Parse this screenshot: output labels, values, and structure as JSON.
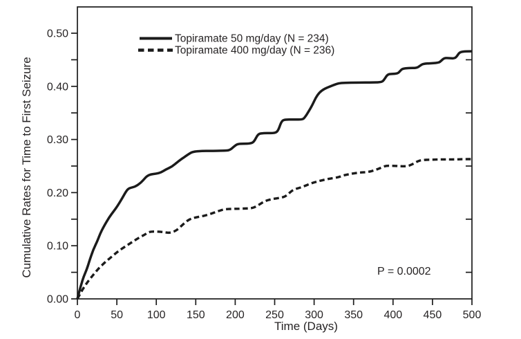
{
  "chart_data": {
    "type": "line",
    "title": "",
    "xlabel": "Time (Days)",
    "ylabel": "Cumulative Rates for Time to First Seizure",
    "xlim": [
      0,
      500
    ],
    "ylim": [
      0,
      0.55
    ],
    "grid": false,
    "legend_position": "top-left-inside",
    "annotation": "P = 0.0002",
    "x_ticks": [
      0,
      50,
      100,
      150,
      200,
      250,
      300,
      350,
      400,
      450,
      500
    ],
    "x_tick_labels": [
      "0",
      "50",
      "100",
      "150",
      "200",
      "250",
      "300",
      "350",
      "400",
      "450",
      "500"
    ],
    "y_ticks_major": [
      0.0,
      0.1,
      0.2,
      0.3,
      0.4,
      0.5
    ],
    "y_tick_labels": [
      "0.00",
      "0.10",
      "0.20",
      "0.30",
      "0.40",
      "0.50"
    ],
    "y_ticks_minor": [
      0.05,
      0.15,
      0.25,
      0.35,
      0.45
    ],
    "right_edge_ticks": [
      0.05,
      0.15,
      0.25,
      0.35,
      0.45
    ],
    "series": [
      {
        "name": "Topiramate 50 mg/day (N = 234)",
        "line_style": "solid",
        "color": "#1b1b1b",
        "points": [
          [
            0,
            0
          ],
          [
            4,
            0.023
          ],
          [
            8,
            0.042
          ],
          [
            12,
            0.056
          ],
          [
            16,
            0.075
          ],
          [
            20,
            0.092
          ],
          [
            25,
            0.108
          ],
          [
            29,
            0.123
          ],
          [
            33,
            0.135
          ],
          [
            40,
            0.153
          ],
          [
            46,
            0.165
          ],
          [
            51,
            0.175
          ],
          [
            57,
            0.19
          ],
          [
            62,
            0.203
          ],
          [
            65,
            0.208
          ],
          [
            70,
            0.21
          ],
          [
            74,
            0.212
          ],
          [
            80,
            0.218
          ],
          [
            85,
            0.226
          ],
          [
            88,
            0.231
          ],
          [
            93,
            0.2345
          ],
          [
            100,
            0.2355
          ],
          [
            106,
            0.238
          ],
          [
            112,
            0.2435
          ],
          [
            120,
            0.249
          ],
          [
            128,
            0.259
          ],
          [
            140,
            0.2715
          ],
          [
            146,
            0.277
          ],
          [
            158,
            0.2785
          ],
          [
            172,
            0.2785
          ],
          [
            186,
            0.279
          ],
          [
            193,
            0.2795
          ],
          [
            199,
            0.2875
          ],
          [
            203,
            0.2915
          ],
          [
            210,
            0.292
          ],
          [
            220,
            0.2925
          ],
          [
            224,
            0.296
          ],
          [
            229,
            0.3105
          ],
          [
            235,
            0.312
          ],
          [
            250,
            0.312
          ],
          [
            254,
            0.3155
          ],
          [
            259,
            0.335
          ],
          [
            263,
            0.3375
          ],
          [
            285,
            0.3375
          ],
          [
            288,
            0.341
          ],
          [
            293,
            0.3525
          ],
          [
            298,
            0.3655
          ],
          [
            302,
            0.3785
          ],
          [
            307,
            0.389
          ],
          [
            313,
            0.3955
          ],
          [
            320,
            0.3995
          ],
          [
            328,
            0.4045
          ],
          [
            334,
            0.4065
          ],
          [
            352,
            0.407
          ],
          [
            370,
            0.4072
          ],
          [
            386,
            0.4078
          ],
          [
            389,
            0.413
          ],
          [
            393,
            0.4225
          ],
          [
            398,
            0.4235
          ],
          [
            406,
            0.424
          ],
          [
            409,
            0.429
          ],
          [
            412,
            0.4335
          ],
          [
            420,
            0.4345
          ],
          [
            430,
            0.4345
          ],
          [
            434,
            0.4385
          ],
          [
            438,
            0.4425
          ],
          [
            450,
            0.4435
          ],
          [
            458,
            0.4445
          ],
          [
            461,
            0.448
          ],
          [
            465,
            0.4535
          ],
          [
            471,
            0.453
          ],
          [
            478,
            0.4525
          ],
          [
            481,
            0.4565
          ],
          [
            484,
            0.4635
          ],
          [
            488,
            0.4655
          ],
          [
            500,
            0.466
          ]
        ]
      },
      {
        "name": "Topiramate 400 mg/day (N = 236)",
        "line_style": "dashed",
        "color": "#1b1b1b",
        "points": [
          [
            0,
            0
          ],
          [
            6,
            0.0165
          ],
          [
            13,
            0.032
          ],
          [
            20,
            0.045
          ],
          [
            27,
            0.0575
          ],
          [
            35,
            0.069
          ],
          [
            44,
            0.08
          ],
          [
            52,
            0.09
          ],
          [
            61,
            0.099
          ],
          [
            70,
            0.1075
          ],
          [
            79,
            0.116
          ],
          [
            85,
            0.1205
          ],
          [
            90,
            0.1255
          ],
          [
            96,
            0.127
          ],
          [
            103,
            0.1265
          ],
          [
            110,
            0.1255
          ],
          [
            117,
            0.124
          ],
          [
            125,
            0.128
          ],
          [
            133,
            0.139
          ],
          [
            141,
            0.1495
          ],
          [
            150,
            0.1535
          ],
          [
            160,
            0.156
          ],
          [
            170,
            0.1605
          ],
          [
            178,
            0.165
          ],
          [
            187,
            0.169
          ],
          [
            200,
            0.1695
          ],
          [
            212,
            0.17
          ],
          [
            222,
            0.1705
          ],
          [
            230,
            0.177
          ],
          [
            238,
            0.1845
          ],
          [
            247,
            0.188
          ],
          [
            259,
            0.1905
          ],
          [
            265,
            0.194
          ],
          [
            273,
            0.2055
          ],
          [
            285,
            0.2105
          ],
          [
            297,
            0.218
          ],
          [
            308,
            0.2225
          ],
          [
            320,
            0.2265
          ],
          [
            330,
            0.2285
          ],
          [
            337,
            0.2325
          ],
          [
            344,
            0.2345
          ],
          [
            355,
            0.2375
          ],
          [
            370,
            0.239
          ],
          [
            377,
            0.2425
          ],
          [
            383,
            0.2455
          ],
          [
            390,
            0.2505
          ],
          [
            400,
            0.2505
          ],
          [
            410,
            0.2498
          ],
          [
            418,
            0.2495
          ],
          [
            425,
            0.2535
          ],
          [
            431,
            0.259
          ],
          [
            437,
            0.2615
          ],
          [
            450,
            0.262
          ],
          [
            465,
            0.2625
          ],
          [
            480,
            0.2625
          ],
          [
            490,
            0.263
          ],
          [
            500,
            0.263
          ]
        ]
      }
    ]
  },
  "colors": {
    "line": "#1b1b1b",
    "text": "#262324",
    "background": "#ffffff"
  }
}
